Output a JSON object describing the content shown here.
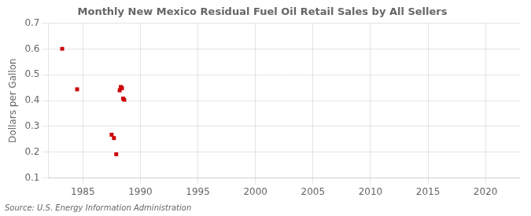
{
  "chart_data": {
    "type": "scatter",
    "title": "Monthly New Mexico Residual Fuel Oil Retail Sales by All Sellers",
    "ylabel": "Dollars per Gallon",
    "annotation": "Source: U.S. Energy Information Administration",
    "x": [
      1983.2,
      1984.5,
      1987.5,
      1987.7,
      1987.9,
      1988.2,
      1988.3,
      1988.4,
      1988.5,
      1988.6
    ],
    "values": [
      0.601,
      0.444,
      0.268,
      0.255,
      0.192,
      0.44,
      0.453,
      0.448,
      0.408,
      0.403
    ],
    "color": "#cc0000",
    "marker": "square",
    "xlim": [
      1982,
      2023
    ],
    "ylim": [
      0.1,
      0.7
    ],
    "xticks": [
      1985,
      1990,
      1995,
      2000,
      2005,
      2010,
      2015,
      2020
    ],
    "yticks": [
      0.1,
      0.2,
      0.3,
      0.4,
      0.5,
      0.6,
      0.7
    ],
    "grid": true
  }
}
